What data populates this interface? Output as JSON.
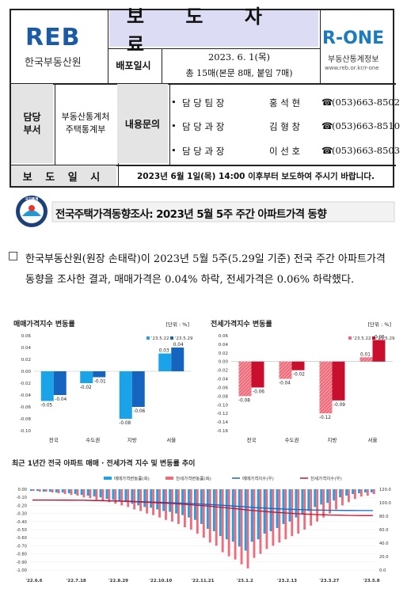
{
  "header": {
    "org_logo": "REB",
    "org_name": "한국부동산원",
    "doc_title": "보 도 자 료",
    "brand_logo": "R-ONE",
    "brand_sub": "부동산통계정보",
    "brand_url": "www.reb.or.kr/r-one",
    "dist_label": "배포일시",
    "dist_date": "2023. 6. 1(목)",
    "dist_pages": "총 15매(본문 8매, 붙임 7매)",
    "dept_label": "담당\n부서",
    "dept_name_1": "부동산통계처",
    "dept_name_2": "주택통계부",
    "inquiry_label": "내용문의",
    "contacts": [
      {
        "role": "담 당 팀 장",
        "name": "홍 석 현",
        "phone": "(053)663-8502"
      },
      {
        "role": "담 당 과 장",
        "name": "김 형 창",
        "phone": "(053)663-8510"
      },
      {
        "role": "담 당 과 장",
        "name": "이 선 호",
        "phone": "(053)663-8503"
      }
    ],
    "release_label": "보 도 일 시",
    "release_text": "2023년 6월 1일(목) 14:00 이후부터 보도하여 주시기 바랍니다."
  },
  "section": {
    "badge": "국가통계",
    "title": "전국주택가격동향조사: 2023년 5월 5주 주간 아파트가격 동향"
  },
  "body": {
    "bullet": "□",
    "paragraph": "한국부동산원(원장 손태락)이 2023년 5월 5주(5.29일 기준) 전국 주간 아파트가격 동향을 조사한 결과, 매매가격은 0.04% 하락, 전세가격은 0.06% 하락했다."
  },
  "chart_data": [
    {
      "type": "bar",
      "title": "매매가격지수 변동률",
      "unit": "[단위 : %]",
      "categories": [
        "전국",
        "수도권",
        "지방",
        "서울"
      ],
      "series": [
        {
          "name": "'23.5.22",
          "values": [
            -0.05,
            -0.02,
            -0.08,
            0.03
          ],
          "color": "#1aa3e8"
        },
        {
          "name": "'23.5.29",
          "values": [
            -0.04,
            -0.01,
            -0.06,
            0.04
          ],
          "color": "#1565c0"
        }
      ],
      "ylim": [
        -0.1,
        0.06
      ],
      "yticks": [
        "0.06",
        "0.04",
        "0.02",
        "0.00",
        "-0.02",
        "-0.04",
        "-0.06",
        "-0.08",
        "-0.10"
      ]
    },
    {
      "type": "bar",
      "title": "전세가격지수 변동률",
      "unit": "[단위 : %]",
      "categories": [
        "전국",
        "수도권",
        "지방",
        "서울"
      ],
      "series": [
        {
          "name": "'23.5.22",
          "values": [
            -0.08,
            -0.04,
            -0.12,
            0.01
          ],
          "color": "#f06a7a"
        },
        {
          "name": "'23.5.29",
          "values": [
            -0.06,
            -0.02,
            -0.09,
            0.05
          ],
          "color": "#c8102e"
        }
      ],
      "ylim": [
        -0.16,
        0.06
      ],
      "yticks": [
        "0.06",
        "0.04",
        "0.02",
        "0.00",
        "-0.02",
        "-0.04",
        "-0.06",
        "-0.08",
        "-0.10",
        "-0.12",
        "-0.14",
        "-0.16"
      ]
    },
    {
      "type": "bar",
      "title": "최근 1년간 전국 아파트 매매 · 전세가격 지수 및 변동률 추이",
      "legend": [
        "매매가격변동률(좌)",
        "전세가격변동률(좌)",
        "매매가격지수(우)",
        "전세가격지수(우)"
      ],
      "x_labels": [
        "'22.6.6",
        "'22.7.18",
        "'22.8.29",
        "'22.10.10",
        "'22.11.21",
        "'23.1.2",
        "'23.2.13",
        "'23.3.27",
        "'23.5.8"
      ],
      "yticks_left": [
        "0.00",
        "-0.10",
        "-0.20",
        "-0.30",
        "-0.40",
        "-0.50",
        "-0.60",
        "-0.70",
        "-0.80",
        "-0.90",
        "-1.00"
      ],
      "yticks_right": [
        "120.0",
        "100.0",
        "80.0",
        "60.0",
        "40.0",
        "20.0",
        "0.0"
      ],
      "ylim_left": [
        -1.0,
        0.0
      ],
      "ylim_right": [
        0,
        120
      ],
      "sale_change": [
        -0.02,
        -0.02,
        -0.03,
        -0.03,
        -0.04,
        -0.04,
        -0.05,
        -0.06,
        -0.07,
        -0.08,
        -0.09,
        -0.1,
        -0.12,
        -0.13,
        -0.15,
        -0.16,
        -0.18,
        -0.2,
        -0.22,
        -0.23,
        -0.25,
        -0.27,
        -0.28,
        -0.3,
        -0.32,
        -0.35,
        -0.38,
        -0.43,
        -0.49,
        -0.52,
        -0.58,
        -0.62,
        -0.65,
        -0.71,
        -0.76,
        -0.65,
        -0.62,
        -0.55,
        -0.52,
        -0.48,
        -0.43,
        -0.4,
        -0.35,
        -0.31,
        -0.27,
        -0.22,
        -0.19,
        -0.17,
        -0.14,
        -0.1,
        -0.08,
        -0.06,
        -0.05,
        -0.04,
        -0.04
      ],
      "jeonse_change": [
        -0.02,
        -0.03,
        -0.03,
        -0.04,
        -0.05,
        -0.06,
        -0.07,
        -0.08,
        -0.1,
        -0.11,
        -0.13,
        -0.14,
        -0.16,
        -0.18,
        -0.2,
        -0.22,
        -0.25,
        -0.27,
        -0.3,
        -0.32,
        -0.35,
        -0.38,
        -0.4,
        -0.43,
        -0.47,
        -0.5,
        -0.55,
        -0.6,
        -0.66,
        -0.7,
        -0.78,
        -0.83,
        -0.87,
        -0.93,
        -0.98,
        -0.85,
        -0.8,
        -0.74,
        -0.7,
        -0.66,
        -0.62,
        -0.58,
        -0.55,
        -0.5,
        -0.45,
        -0.4,
        -0.35,
        -0.3,
        -0.25,
        -0.2,
        -0.16,
        -0.12,
        -0.09,
        -0.08,
        -0.06
      ],
      "sale_index": [
        104,
        104,
        104,
        104,
        104,
        103.9,
        103.8,
        103.7,
        103.6,
        103.5,
        103.4,
        103.2,
        103,
        102.8,
        102.5,
        102.3,
        102,
        101.7,
        101.4,
        101,
        100.7,
        100.3,
        100,
        99.6,
        99.2,
        98.8,
        98.4,
        97.9,
        97.3,
        96.8,
        96.2,
        95.6,
        95,
        94.3,
        93.6,
        93,
        92.4,
        91.9,
        91.4,
        91,
        90.6,
        90.2,
        89.9,
        89.6,
        89.3,
        89.1,
        88.9,
        88.8,
        88.7,
        88.6,
        88.5,
        88.5,
        88.4,
        88.4,
        88.4
      ],
      "jeonse_index": [
        104,
        104,
        104,
        104,
        103.9,
        103.9,
        103.8,
        103.7,
        103.6,
        103.4,
        103.2,
        103,
        102.8,
        102.5,
        102.2,
        101.9,
        101.5,
        101.1,
        100.7,
        100.3,
        99.8,
        99.3,
        98.8,
        98.2,
        97.6,
        97,
        96.3,
        95.6,
        94.8,
        94,
        93.1,
        92.2,
        91.3,
        90.3,
        89.3,
        88.4,
        87.6,
        86.8,
        86.1,
        85.4,
        84.8,
        84.2,
        83.7,
        83.2,
        82.8,
        82.4,
        82.1,
        81.8,
        81.6,
        81.4,
        81.2,
        81.1,
        81,
        80.9,
        80.9
      ]
    }
  ]
}
